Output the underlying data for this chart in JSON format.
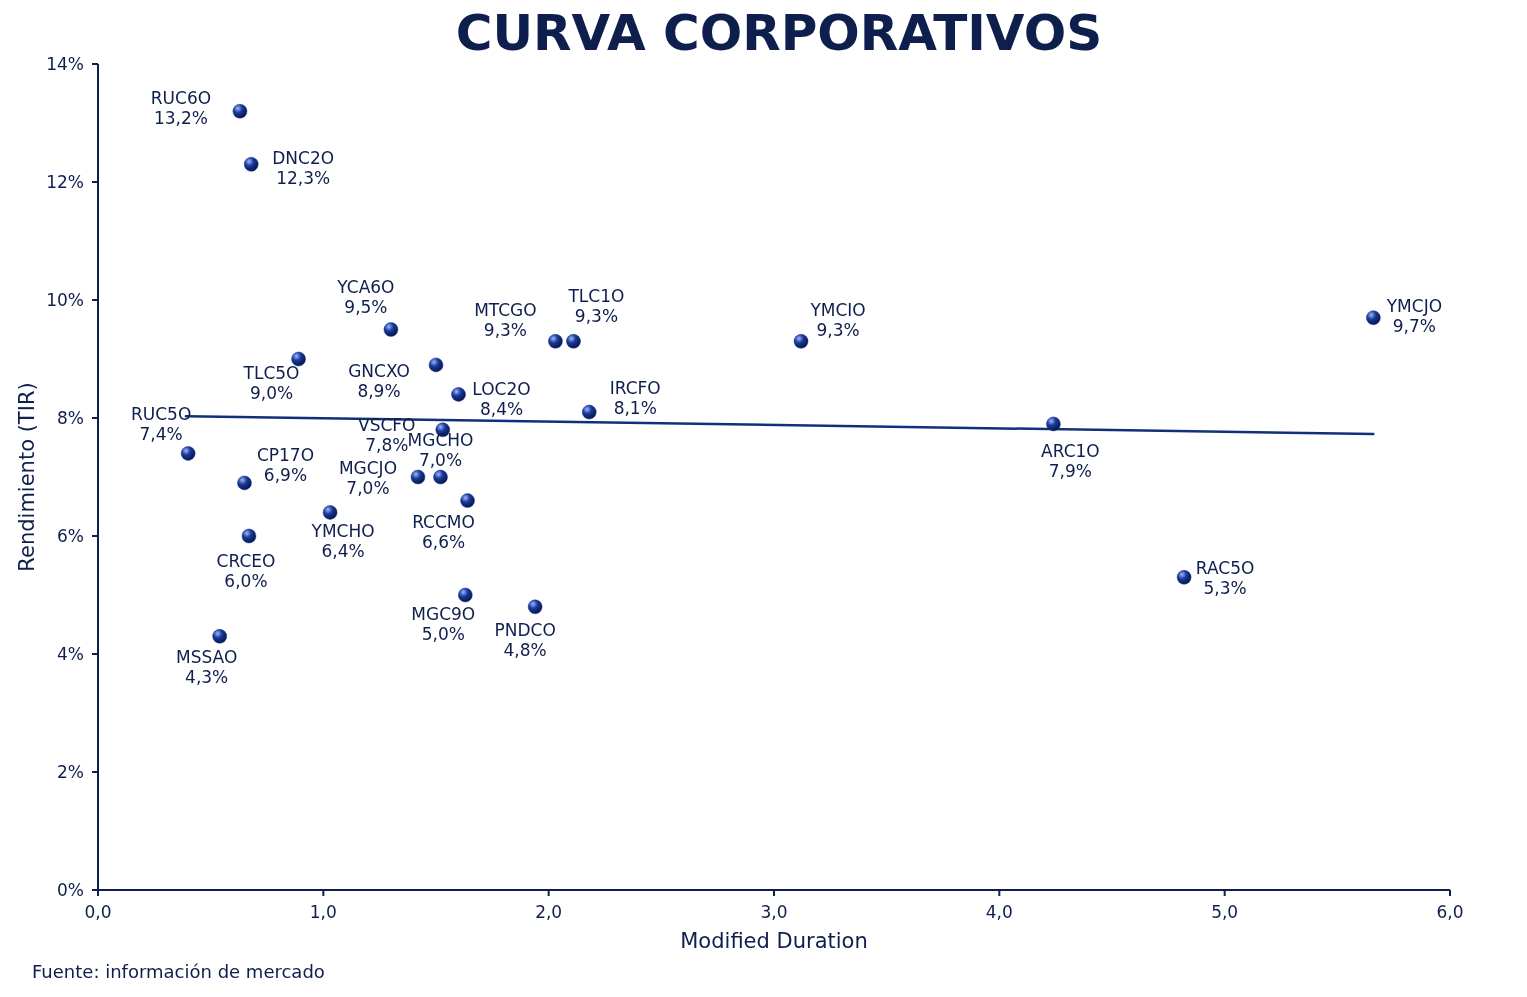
{
  "chart_data": {
    "type": "scatter",
    "title": "CURVA CORPORATIVOS",
    "xlabel": "Modified Duration",
    "ylabel": "Rendimiento (TIR)",
    "xlim": [
      0,
      6
    ],
    "xticks": [
      {
        "value": 0,
        "label": "0,0"
      },
      {
        "value": 1,
        "label": "1,0"
      },
      {
        "value": 2,
        "label": "2,0"
      },
      {
        "value": 3,
        "label": "3,0"
      },
      {
        "value": 4,
        "label": "4,0"
      },
      {
        "value": 5,
        "label": "5,0"
      },
      {
        "value": 6,
        "label": "6,0"
      }
    ],
    "ylim": [
      0,
      14
    ],
    "yticks": [
      {
        "value": 0,
        "label": "0%"
      },
      {
        "value": 2,
        "label": "2%"
      },
      {
        "value": 4,
        "label": "4%"
      },
      {
        "value": 6,
        "label": "6%"
      },
      {
        "value": 8,
        "label": "8%"
      },
      {
        "value": 10,
        "label": "10%"
      },
      {
        "value": 12,
        "label": "12%"
      },
      {
        "value": 14,
        "label": "14%"
      }
    ],
    "marker": "circle",
    "grid": false,
    "series": [
      {
        "color": "#1a3a9a",
        "x": [
          0.63,
          0.68,
          1.3,
          0.89,
          1.5,
          1.6,
          2.03,
          2.11,
          3.12,
          5.66,
          2.18,
          0.4,
          1.53,
          0.65,
          1.42,
          1.52,
          1.64,
          1.03,
          0.67,
          1.63,
          1.94,
          0.54,
          4.24,
          4.82
        ],
        "values": [
          13.2,
          12.3,
          9.5,
          9.0,
          8.9,
          8.4,
          9.3,
          9.3,
          9.3,
          9.7,
          8.1,
          7.4,
          7.8,
          6.9,
          7.0,
          7.0,
          6.6,
          6.4,
          6.0,
          5.0,
          4.8,
          4.3,
          7.9,
          5.3
        ],
        "value_labels": [
          "13,2%",
          "12,3%",
          "9,5%",
          "9,0%",
          "8,9%",
          "8,4%",
          "9,3%",
          "9,3%",
          "9,3%",
          "9,7%",
          "8,1%",
          "7,4%",
          "7,8%",
          "6,9%",
          "7,0%",
          "7,0%",
          "6,6%",
          "6,4%",
          "6,0%",
          "5,0%",
          "4,8%",
          "4,3%",
          "7,9%",
          "5,3%"
        ]
      },
      {
        "type": "line",
        "color": "#12307a",
        "line_style": "solid",
        "marker": "none",
        "x": [
          0.39,
          5.66
        ],
        "values": [
          8.03,
          7.73
        ]
      }
    ],
    "annotations": [
      {
        "text": "RUC6O",
        "x": 0.63,
        "y": 13.2
      },
      {
        "text": "DNC2O",
        "x": 0.68,
        "y": 12.3
      },
      {
        "text": "YCA6O",
        "x": 1.3,
        "y": 9.5
      },
      {
        "text": "TLC5O",
        "x": 0.89,
        "y": 9.0
      },
      {
        "text": "GNCXO",
        "x": 1.5,
        "y": 8.9
      },
      {
        "text": "LOC2O",
        "x": 1.6,
        "y": 8.4
      },
      {
        "text": "MTCGO",
        "x": 2.03,
        "y": 9.3
      },
      {
        "text": "TLC1O",
        "x": 2.11,
        "y": 9.3
      },
      {
        "text": "YMCIO",
        "x": 3.12,
        "y": 9.3
      },
      {
        "text": "YMCJO",
        "x": 5.66,
        "y": 9.7
      },
      {
        "text": "IRCFO",
        "x": 2.18,
        "y": 8.1
      },
      {
        "text": "RUC5O",
        "x": 0.4,
        "y": 7.4
      },
      {
        "text": "VSCFO",
        "x": 1.53,
        "y": 7.8
      },
      {
        "text": "CP17O",
        "x": 0.65,
        "y": 6.9
      },
      {
        "text": "MGCJO",
        "x": 1.42,
        "y": 7.0
      },
      {
        "text": "MGCHO",
        "x": 1.52,
        "y": 7.0
      },
      {
        "text": "RCCMO",
        "x": 1.64,
        "y": 6.6
      },
      {
        "text": "YMCHO",
        "x": 1.03,
        "y": 6.4
      },
      {
        "text": "CRCEO",
        "x": 0.67,
        "y": 6.0
      },
      {
        "text": "MGC9O",
        "x": 1.63,
        "y": 5.0
      },
      {
        "text": "PNDCO",
        "x": 1.94,
        "y": 4.8
      },
      {
        "text": "MSSAO",
        "x": 0.54,
        "y": 4.3
      },
      {
        "text": "ARC1O",
        "x": 4.24,
        "y": 7.9
      },
      {
        "text": "RAC5O",
        "x": 4.82,
        "y": 5.3
      },
      "Fuente: información de mercado"
    ]
  }
}
